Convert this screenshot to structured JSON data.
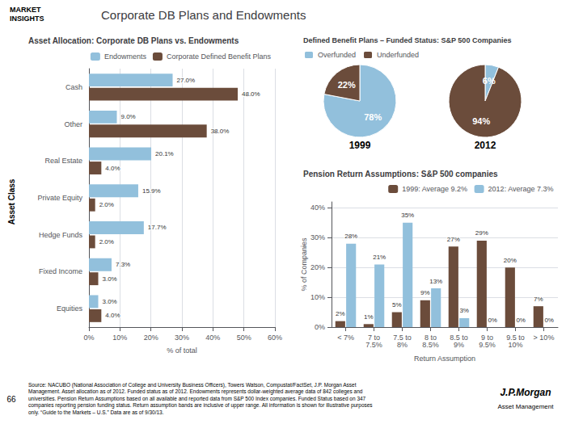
{
  "title": "Corporate DB Plans and Endowments",
  "annotations": [
    "MARKET\nINSIGHTS",
    "Asset Class",
    "Source: NACUBO (National Association of College and University Business Officers), Towers Watson, Compustat/FactSet, J.P. Morgan Asset\nManagement. Asset allocation as of 2012. Funded status as of 2012. Endowments represents dollar-weighted average data of 842 colleges and\nuniversities. Pension Return Assumptions based on all available and reported data from S&P 500 Index companies. Funded Status based on 347\ncompanies reporting pension funding status. Return assumption bands are inclusive of upper range. All information is shown for illustrative purposes\nonly. “Guide to the Markets – U.S.” Data are as of 9/30/13.",
    "66",
    "J.P.Morgan",
    "Asset Management"
  ],
  "chart_data": [
    {
      "type": "bar",
      "orientation": "horizontal",
      "title": "Asset Allocation: Corporate DB Plans vs. Endowments",
      "categories": [
        "Cash",
        "Other",
        "Real Estate",
        "Private Equity",
        "Hedge Funds",
        "Fixed Income",
        "Equities"
      ],
      "series": [
        {
          "name": "Endowments",
          "color": "#92c0dc",
          "values": [
            27.0,
            9.0,
            20.1,
            15.9,
            17.7,
            7.3,
            3.0
          ],
          "value_labels": [
            "27.0%",
            "9.0%",
            "20.1%",
            "15.9%",
            "17.7%",
            "7.3%",
            "3.0%"
          ]
        },
        {
          "name": "Corporate Defined Benefit Plans",
          "color": "#6b4c3b",
          "values": [
            48.0,
            38.0,
            4.0,
            2.0,
            2.0,
            3.0,
            4.0
          ],
          "value_labels": [
            "48.0%",
            "38.0%",
            "4.0%",
            "2.0%",
            "2.0%",
            "3.0%",
            "4.0%"
          ]
        }
      ],
      "xlabel": "% of total",
      "xlim": [
        0,
        60
      ],
      "xticks": [
        {
          "value": 0,
          "label": "0%"
        },
        {
          "value": 10,
          "label": "10%"
        },
        {
          "value": 20,
          "label": "20%"
        },
        {
          "value": 30,
          "label": "30%"
        },
        {
          "value": 40,
          "label": "40%"
        },
        {
          "value": 50,
          "label": "50%"
        },
        {
          "value": 60,
          "label": "60%"
        }
      ],
      "grid": true,
      "legend": "upper right",
      "data_labels": true
    },
    {
      "type": "pie",
      "title": "Defined Benefit Plans – Funded Status: S&P 500 Companies",
      "subtitle": "1999",
      "categories": [
        "Overfunded",
        "Underfunded"
      ],
      "values": [
        78,
        22
      ],
      "value_labels": [
        "78%",
        "22%"
      ],
      "colors": [
        "#92c0dc",
        "#6b4c3b"
      ],
      "legend": "upper left",
      "data_labels": true
    },
    {
      "type": "pie",
      "subtitle": "2012",
      "categories": [
        "Overfunded",
        "Underfunded"
      ],
      "values": [
        6,
        94
      ],
      "value_labels": [
        "6%",
        "94%"
      ],
      "colors": [
        "#92c0dc",
        "#6b4c3b"
      ],
      "data_labels": true
    },
    {
      "type": "bar",
      "title": "Pension Return Assumptions: S&P 500 companies",
      "categories": [
        "< 7%",
        "7 to\n7.5%",
        "7.5 to\n8%",
        "8 to\n8.5%",
        "8.5 to\n9%",
        "9 to\n9.5%",
        "9.5 to\n10%",
        "> 10%"
      ],
      "series": [
        {
          "name": "1999: Average 9.2%",
          "color": "#6b4c3b",
          "values": [
            2,
            1,
            5,
            9,
            27,
            29,
            20,
            7
          ],
          "value_labels": [
            "2%",
            "1%",
            "5%",
            "9%",
            "27%",
            "29%",
            "20%",
            "7%"
          ]
        },
        {
          "name": "2012: Average 7.3%",
          "color": "#92c0dc",
          "values": [
            28,
            21,
            35,
            13,
            3,
            0,
            0,
            0
          ],
          "value_labels": [
            "28%",
            "21%",
            "35%",
            "13%",
            "3%",
            "0%",
            "0%",
            "0%"
          ]
        }
      ],
      "xlabel": "Return Assumption",
      "ylabel": "% of Companies",
      "ylim": [
        0,
        42
      ],
      "yticks": [
        {
          "value": 0,
          "label": "0%"
        },
        {
          "value": 10,
          "label": "10%"
        },
        {
          "value": 20,
          "label": "20%"
        },
        {
          "value": 30,
          "label": "30%"
        },
        {
          "value": 40,
          "label": "40%"
        }
      ],
      "grid": true,
      "legend": "upper right",
      "data_labels": true
    }
  ]
}
